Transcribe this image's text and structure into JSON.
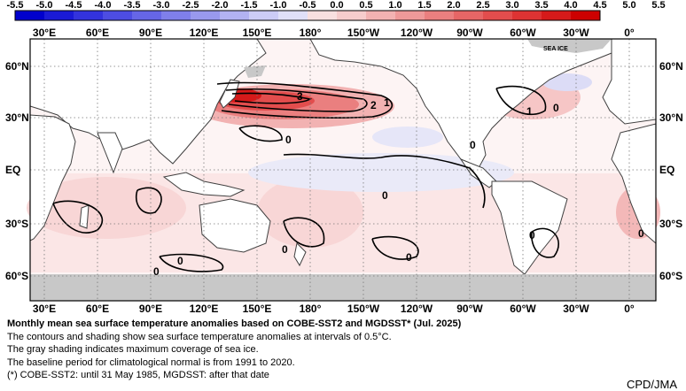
{
  "colorbar": {
    "labels": [
      "-5.5",
      "-5.0",
      "-4.5",
      "-4.0",
      "-3.5",
      "-3.0",
      "-2.5",
      "-2.0",
      "-1.5",
      "-1.0",
      "-0.5",
      "0.0",
      "0.5",
      "1.0",
      "1.5",
      "2.0",
      "2.5",
      "3.0",
      "3.5",
      "4.0",
      "4.5",
      "5.0",
      "5.5"
    ],
    "neg_colors": [
      "#0000cd",
      "#1a1ad6",
      "#3333dd",
      "#4d4de2",
      "#6666e6",
      "#7f7fea",
      "#9999ee",
      "#b2b2f2",
      "#ccccf6",
      "#e0e0f9"
    ],
    "pos_colors": [
      "#f9e0e0",
      "#f6cccc",
      "#f2b2b2",
      "#ee9999",
      "#ea7f7f",
      "#e66666",
      "#e24d4d",
      "#dd3333",
      "#d61a1a",
      "#cd0000"
    ]
  },
  "map": {
    "lon_labels_top": [
      "30°E",
      "60°E",
      "90°E",
      "120°E",
      "150°E",
      "180°",
      "150°W",
      "120°W",
      "90°W",
      "60°W",
      "30°W",
      "0°"
    ],
    "lon_labels_bottom": [
      "30°E",
      "60°E",
      "90°E",
      "120°E",
      "150°E",
      "180°",
      "150°W",
      "120°W",
      "90°W",
      "60°W",
      "30°W",
      "0°"
    ],
    "lat_labels_left": [
      "60°N",
      "30°N",
      "EQ",
      "30°S",
      "60°S"
    ],
    "lat_labels_right": [
      "60°N",
      "30°N",
      "EQ",
      "30°S",
      "60°S"
    ],
    "sea_ice_label": "SEA ICE",
    "contour_labels": [
      "3",
      "2",
      "1",
      "0",
      "1",
      "0",
      "0",
      "0",
      "0",
      "0",
      "0",
      "0",
      "0",
      "0"
    ],
    "land_color": "#ffffff",
    "sea_ice_color": "#c8c8c8",
    "coast_color": "#404040"
  },
  "caption": {
    "title": "Monthly mean sea surface temperature anomalies based on COBE-SST2 and MGDSST* (Jul. 2025)",
    "line1": "The contours and shading show sea surface temperature anomalies at intervals of 0.5°C.",
    "line2": "The gray shading indicates maximum coverage of sea ice.",
    "line3": "The baseline period for climatological normal is from 1991 to 2020.",
    "line4": "(*) COBE-SST2: until 31 May 1985, MGDSST: after that date"
  },
  "credit": "CPD/JMA"
}
